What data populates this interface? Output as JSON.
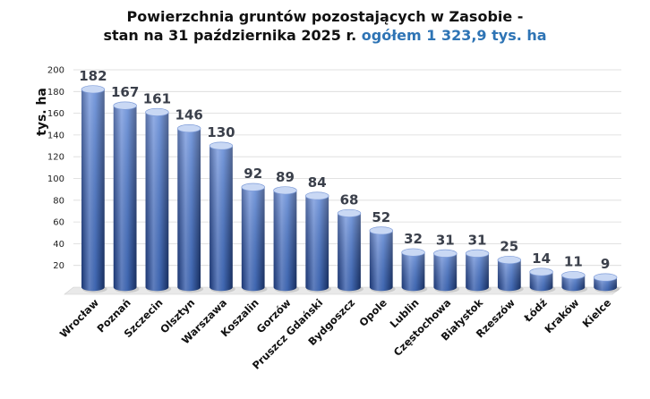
{
  "chart_data": {
    "type": "bar",
    "title_line1": "Powierzchnia gruntów pozostających w Zasobie -",
    "title_line2": "stan na 31 października 2025 r.",
    "title_accent": "ogółem 1 323,9 tys. ha",
    "ylabel": "tys. ha",
    "xlabel": "",
    "ylim": [
      0,
      200
    ],
    "yticks": [
      20,
      40,
      60,
      80,
      100,
      120,
      140,
      160,
      180,
      200
    ],
    "grid": true,
    "categories": [
      "Wrocław",
      "Poznań",
      "Szczecin",
      "Olsztyn",
      "Warszawa",
      "Koszalin",
      "Gorzów",
      "Pruszcz Gdański",
      "Bydgoszcz",
      "Opole",
      "Lublin",
      "Częstochowa",
      "Białystok",
      "Rzeszów",
      "Łódź",
      "Kraków",
      "Kielce"
    ],
    "values": [
      182,
      167,
      161,
      146,
      130,
      92,
      89,
      84,
      68,
      52,
      32,
      31,
      31,
      25,
      14,
      11,
      9
    ],
    "colors": {
      "bar_light": "#9fb8e8",
      "bar_mid": "#4a78cf",
      "bar_dark": "#1f3f86",
      "cap": "#c9d8f4",
      "grid": "#d9d9d9",
      "accent": "#2e74b5"
    }
  }
}
